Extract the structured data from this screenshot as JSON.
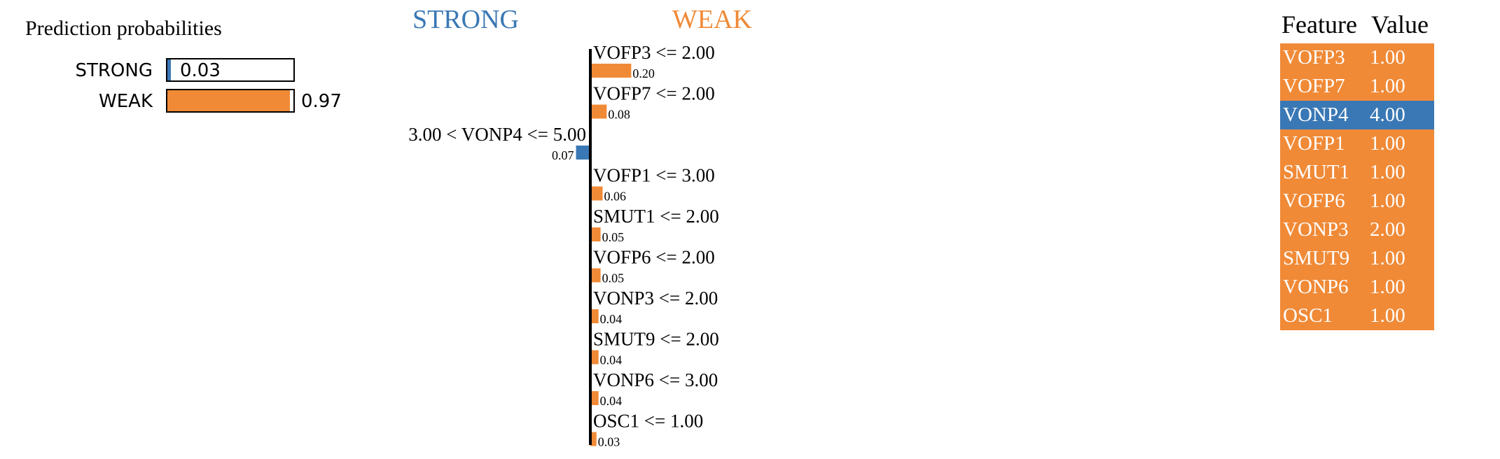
{
  "colors": {
    "strong": "#3a78b5",
    "weak": "#f08a37",
    "axis": "#000000"
  },
  "prediction": {
    "title": "Prediction probabilities",
    "rows": [
      {
        "label": "STRONG",
        "value": 0.03,
        "value_text": "0.03",
        "color": "#3a78b5"
      },
      {
        "label": "WEAK",
        "value": 0.97,
        "value_text": "0.97",
        "color": "#f08a37"
      }
    ]
  },
  "chart_data": {
    "type": "bar",
    "orientation": "horizontal",
    "class_labels": {
      "negative": "STRONG",
      "positive": "WEAK"
    },
    "features": [
      {
        "label": "VOFP3 <= 2.00",
        "weight": 0.2,
        "weight_text": "0.20",
        "class": "WEAK"
      },
      {
        "label": "VOFP7 <= 2.00",
        "weight": 0.08,
        "weight_text": "0.08",
        "class": "WEAK"
      },
      {
        "label": "3.00 < VONP4 <= 5.00",
        "weight": 0.07,
        "weight_text": "0.07",
        "class": "STRONG"
      },
      {
        "label": "VOFP1 <= 3.00",
        "weight": 0.06,
        "weight_text": "0.06",
        "class": "WEAK"
      },
      {
        "label": "SMUT1 <= 2.00",
        "weight": 0.05,
        "weight_text": "0.05",
        "class": "WEAK"
      },
      {
        "label": "VOFP6 <= 2.00",
        "weight": 0.05,
        "weight_text": "0.05",
        "class": "WEAK"
      },
      {
        "label": "VONP3 <= 2.00",
        "weight": 0.04,
        "weight_text": "0.04",
        "class": "WEAK"
      },
      {
        "label": "SMUT9 <= 2.00",
        "weight": 0.04,
        "weight_text": "0.04",
        "class": "WEAK"
      },
      {
        "label": "VONP6 <= 3.00",
        "weight": 0.04,
        "weight_text": "0.04",
        "class": "WEAK"
      },
      {
        "label": "OSC1 <= 1.00",
        "weight": 0.03,
        "weight_text": "0.03",
        "class": "WEAK"
      }
    ]
  },
  "feature_table": {
    "headers": [
      "Feature",
      "Value"
    ],
    "rows": [
      {
        "feature": "VOFP3",
        "value": "1.00",
        "class": "WEAK"
      },
      {
        "feature": "VOFP7",
        "value": "1.00",
        "class": "WEAK"
      },
      {
        "feature": "VONP4",
        "value": "4.00",
        "class": "STRONG"
      },
      {
        "feature": "VOFP1",
        "value": "1.00",
        "class": "WEAK"
      },
      {
        "feature": "SMUT1",
        "value": "1.00",
        "class": "WEAK"
      },
      {
        "feature": "VOFP6",
        "value": "1.00",
        "class": "WEAK"
      },
      {
        "feature": "VONP3",
        "value": "2.00",
        "class": "WEAK"
      },
      {
        "feature": "SMUT9",
        "value": "1.00",
        "class": "WEAK"
      },
      {
        "feature": "VONP6",
        "value": "1.00",
        "class": "WEAK"
      },
      {
        "feature": "OSC1",
        "value": "1.00",
        "class": "WEAK"
      }
    ]
  }
}
